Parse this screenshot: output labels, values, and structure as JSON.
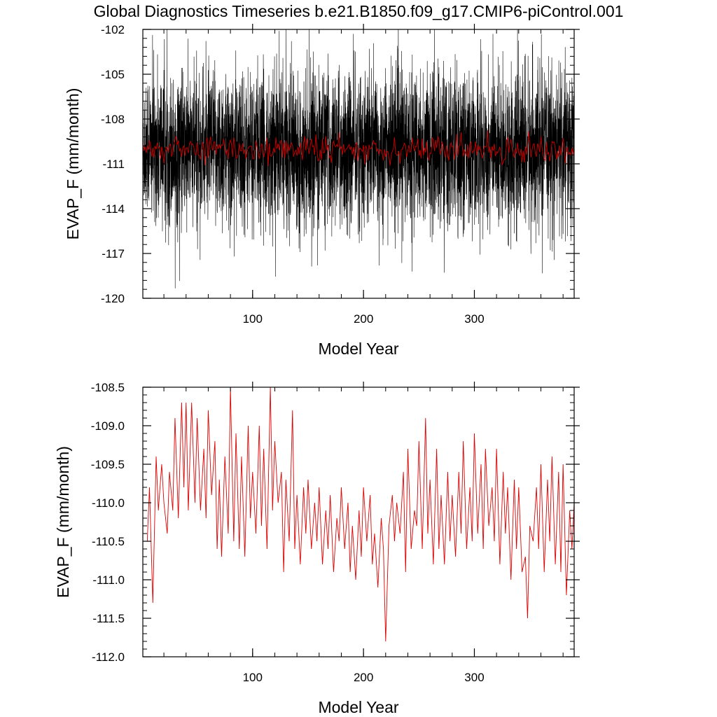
{
  "title": "Global Diagnostics Timeseries b.e21.B1850.f09_g17.CMIP6-piControl.001",
  "chart_data": [
    {
      "type": "line",
      "xlabel": "Model Year",
      "ylabel": "EVAP_F (mm/month)",
      "xlim": [
        1,
        390
      ],
      "ylim": [
        -120,
        -102
      ],
      "xticks": [
        100,
        200,
        300
      ],
      "xtick_labels": [
        "100",
        "200",
        "300"
      ],
      "yticks": [
        -120,
        -117,
        -114,
        -111,
        -108,
        -105,
        -102
      ],
      "ytick_labels": [
        "-120",
        "-117",
        "-114",
        "-111",
        "-108",
        "-105",
        "-102"
      ],
      "grid": false,
      "series": [
        {
          "color": "#000000",
          "resolution": "monthly",
          "mean": -110.0,
          "typical_range": [
            -114.5,
            -105.5
          ],
          "extremes": [
            -117.8,
            -102.1
          ]
        },
        {
          "color": "#cc0000",
          "resolution": "annual",
          "mean": -110.0,
          "typical_range": [
            -111.0,
            -109.0
          ]
        }
      ]
    },
    {
      "type": "line",
      "xlabel": "Model Year",
      "ylabel": "EVAP_F (mm/month)",
      "xlim": [
        1,
        390
      ],
      "ylim": [
        -112.0,
        -108.5
      ],
      "xticks": [
        100,
        200,
        300
      ],
      "xtick_labels": [
        "100",
        "200",
        "300"
      ],
      "yticks": [
        -112.0,
        -111.5,
        -111.0,
        -110.5,
        -110.0,
        -109.5,
        -109.0,
        -108.5
      ],
      "ytick_labels": [
        "-112.0",
        "-111.5",
        "-111.0",
        "-110.5",
        "-110.0",
        "-109.5",
        "-109.0",
        "-108.5"
      ],
      "grid": false,
      "series": [
        {
          "color": "#dd0000",
          "resolution": "annual",
          "x": [
            5,
            7,
            10,
            13,
            15,
            18,
            20,
            23,
            25,
            28,
            30,
            33,
            36,
            38,
            40,
            42,
            45,
            48,
            50,
            53,
            56,
            58,
            60,
            63,
            66,
            68,
            70,
            72,
            75,
            78,
            80,
            83,
            85,
            88,
            90,
            93,
            96,
            98,
            100,
            103,
            106,
            108,
            110,
            113,
            116,
            118,
            120,
            123,
            126,
            128,
            130,
            133,
            136,
            138,
            140,
            143,
            146,
            148,
            150,
            153,
            156,
            158,
            160,
            163,
            166,
            168,
            170,
            173,
            176,
            178,
            180,
            183,
            186,
            188,
            190,
            193,
            196,
            198,
            200,
            203,
            206,
            208,
            210,
            213,
            216,
            218,
            220,
            223,
            226,
            228,
            230,
            233,
            236,
            238,
            240,
            243,
            246,
            248,
            250,
            253,
            256,
            258,
            260,
            263,
            266,
            268,
            270,
            273,
            276,
            278,
            280,
            283,
            286,
            288,
            290,
            293,
            296,
            298,
            300,
            303,
            306,
            308,
            310,
            313,
            316,
            318,
            320,
            323,
            326,
            328,
            330,
            333,
            336,
            338,
            340,
            343,
            346,
            348,
            350,
            353,
            356,
            358,
            360,
            363,
            366,
            368,
            370,
            373,
            376,
            378,
            380,
            383,
            386,
            388,
            390
          ],
          "y": [
            -110.5,
            -109.8,
            -111.3,
            -109.4,
            -110.1,
            -109.5,
            -110.0,
            -110.4,
            -109.6,
            -110.1,
            -108.9,
            -110.2,
            -108.7,
            -109.8,
            -108.7,
            -110.1,
            -108.7,
            -110.0,
            -108.9,
            -110.1,
            -109.3,
            -110.2,
            -108.8,
            -109.9,
            -109.2,
            -110.6,
            -109.7,
            -110.7,
            -109.4,
            -110.4,
            -108.5,
            -110.5,
            -109.1,
            -110.6,
            -109.4,
            -110.7,
            -109.0,
            -110.2,
            -109.6,
            -110.4,
            -109.0,
            -110.3,
            -109.3,
            -110.6,
            -108.5,
            -110.1,
            -109.2,
            -110.0,
            -109.6,
            -110.9,
            -109.7,
            -110.5,
            -108.8,
            -110.6,
            -109.9,
            -110.8,
            -109.8,
            -110.4,
            -109.7,
            -110.6,
            -110.0,
            -110.5,
            -109.8,
            -110.8,
            -110.1,
            -110.6,
            -109.9,
            -110.9,
            -110.2,
            -110.5,
            -109.8,
            -110.6,
            -110.0,
            -110.9,
            -110.3,
            -111.0,
            -110.1,
            -110.7,
            -109.8,
            -110.5,
            -109.9,
            -110.8,
            -110.4,
            -111.1,
            -110.2,
            -110.6,
            -111.8,
            -110.3,
            -109.9,
            -110.5,
            -110.0,
            -110.4,
            -109.6,
            -110.9,
            -109.3,
            -110.6,
            -110.1,
            -110.3,
            -109.2,
            -110.6,
            -108.9,
            -110.4,
            -109.7,
            -110.8,
            -109.3,
            -110.6,
            -109.9,
            -110.8,
            -109.6,
            -110.5,
            -109.9,
            -110.7,
            -109.6,
            -110.4,
            -109.2,
            -110.6,
            -109.8,
            -110.5,
            -109.1,
            -110.4,
            -109.5,
            -110.6,
            -109.3,
            -110.3,
            -109.8,
            -110.5,
            -109.3,
            -110.8,
            -109.6,
            -110.4,
            -109.8,
            -111.0,
            -109.7,
            -110.6,
            -109.8,
            -110.9,
            -110.7,
            -111.5,
            -110.3,
            -110.5,
            -109.8,
            -110.6,
            -109.5,
            -110.9,
            -109.7,
            -110.5,
            -109.4,
            -110.8,
            -109.6,
            -110.9,
            -109.5,
            -111.2,
            -110.1,
            -110.6,
            -110.0
          ]
        }
      ]
    }
  ]
}
